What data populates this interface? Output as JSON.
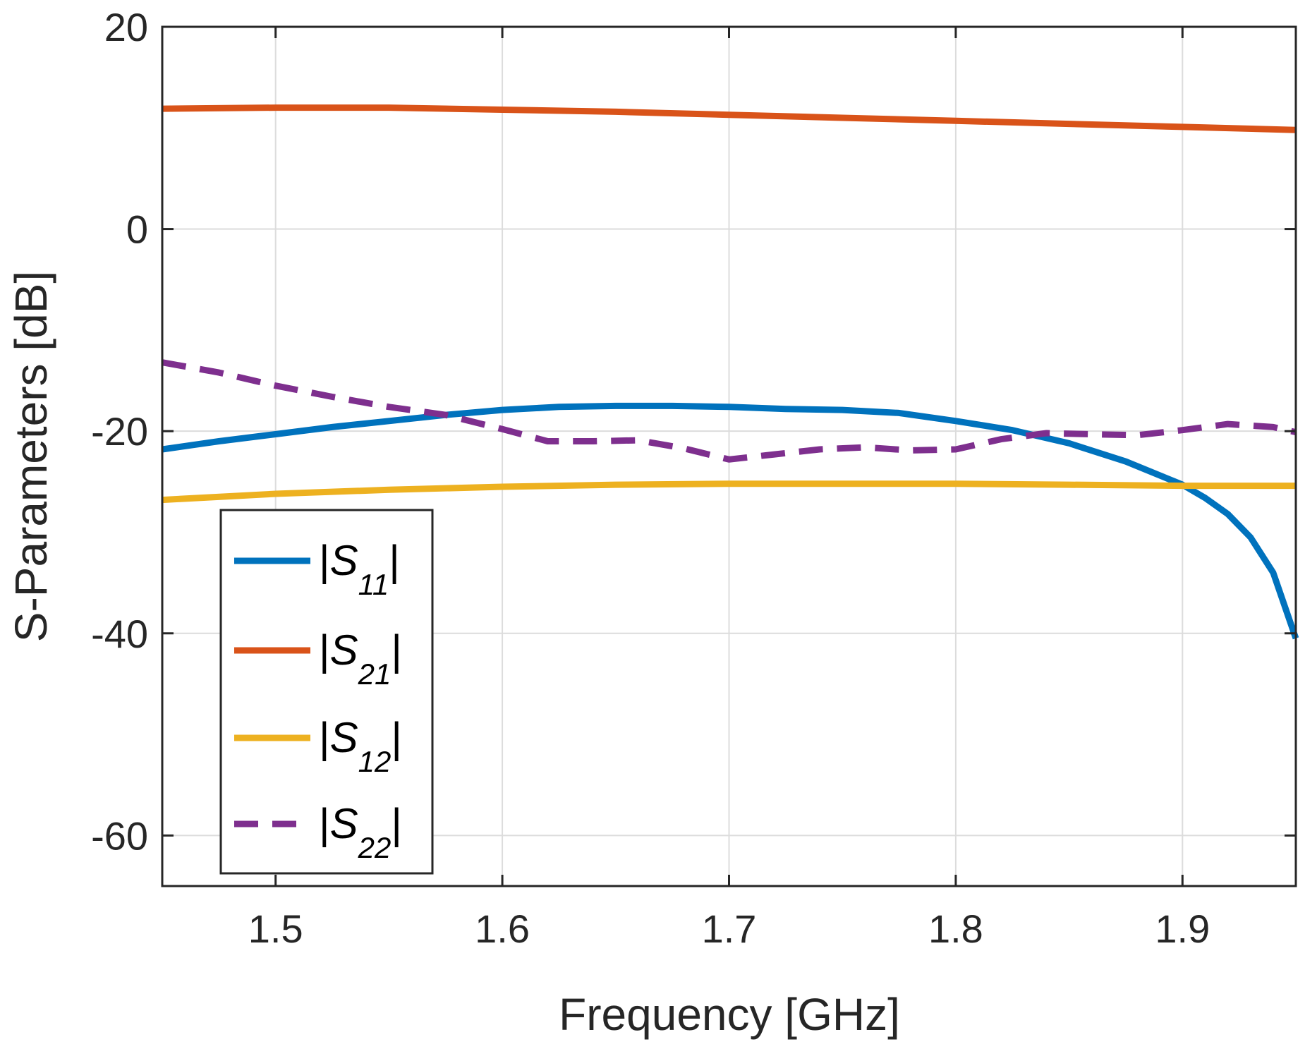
{
  "chart_data": {
    "type": "line",
    "title": "",
    "xlabel": "Frequency [GHz]",
    "ylabel": "S-Parameters [dB]",
    "xlim": [
      1.45,
      1.95
    ],
    "ylim": [
      -65,
      20
    ],
    "xticks": [
      1.5,
      1.6,
      1.7,
      1.8,
      1.9
    ],
    "xtick_labels": [
      "1.5",
      "1.6",
      "1.7",
      "1.8",
      "1.9"
    ],
    "yticks": [
      20,
      0,
      -20,
      -40,
      -60
    ],
    "ytick_labels": [
      "20",
      "0",
      "-20",
      "-40",
      "-60"
    ],
    "grid": true,
    "legend_position": "bottom-left",
    "series": [
      {
        "name": "|S11|",
        "legend_main": "S",
        "legend_sub": "11",
        "color": "#0072BD",
        "dash": "solid",
        "x": [
          1.45,
          1.475,
          1.5,
          1.525,
          1.55,
          1.575,
          1.6,
          1.625,
          1.65,
          1.675,
          1.7,
          1.725,
          1.75,
          1.775,
          1.8,
          1.825,
          1.85,
          1.875,
          1.9,
          1.91,
          1.92,
          1.93,
          1.94,
          1.95
        ],
        "y": [
          -21.8,
          -21.0,
          -20.3,
          -19.6,
          -19.0,
          -18.4,
          -17.9,
          -17.6,
          -17.5,
          -17.5,
          -17.6,
          -17.8,
          -17.9,
          -18.2,
          -19.0,
          -19.9,
          -21.2,
          -23.0,
          -25.3,
          -26.6,
          -28.2,
          -30.5,
          -34.0,
          -40.5
        ]
      },
      {
        "name": "|S21|",
        "legend_main": "S",
        "legend_sub": "21",
        "color": "#D95319",
        "dash": "solid",
        "x": [
          1.45,
          1.5,
          1.55,
          1.6,
          1.65,
          1.7,
          1.75,
          1.8,
          1.85,
          1.9,
          1.95
        ],
        "y": [
          11.9,
          12.0,
          12.0,
          11.8,
          11.6,
          11.3,
          11.0,
          10.7,
          10.4,
          10.1,
          9.8
        ]
      },
      {
        "name": "|S12|",
        "legend_main": "S",
        "legend_sub": "12",
        "color": "#EDB120",
        "dash": "solid",
        "x": [
          1.45,
          1.5,
          1.55,
          1.6,
          1.65,
          1.7,
          1.75,
          1.8,
          1.85,
          1.9,
          1.95
        ],
        "y": [
          -26.8,
          -26.2,
          -25.8,
          -25.5,
          -25.3,
          -25.2,
          -25.2,
          -25.2,
          -25.3,
          -25.4,
          -25.4
        ]
      },
      {
        "name": "|S22|",
        "legend_main": "S",
        "legend_sub": "22",
        "color": "#7E2F8E",
        "dash": "dashed",
        "x": [
          1.45,
          1.475,
          1.5,
          1.525,
          1.55,
          1.575,
          1.6,
          1.62,
          1.64,
          1.66,
          1.68,
          1.7,
          1.72,
          1.74,
          1.76,
          1.78,
          1.8,
          1.82,
          1.84,
          1.86,
          1.88,
          1.9,
          1.92,
          1.94,
          1.95
        ],
        "y": [
          -13.2,
          -14.2,
          -15.5,
          -16.6,
          -17.6,
          -18.4,
          -19.8,
          -21.0,
          -21.0,
          -20.9,
          -21.7,
          -22.8,
          -22.3,
          -21.8,
          -21.6,
          -21.9,
          -21.8,
          -20.8,
          -20.2,
          -20.3,
          -20.4,
          -19.9,
          -19.3,
          -19.6,
          -20.1
        ]
      }
    ]
  }
}
